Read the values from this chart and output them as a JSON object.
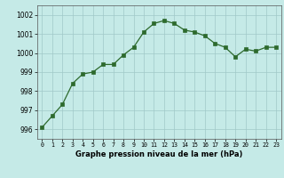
{
  "x": [
    0,
    1,
    2,
    3,
    4,
    5,
    6,
    7,
    8,
    9,
    10,
    11,
    12,
    13,
    14,
    15,
    16,
    17,
    18,
    19,
    20,
    21,
    22,
    23
  ],
  "y": [
    996.1,
    996.7,
    997.3,
    998.4,
    998.9,
    999.0,
    999.4,
    999.4,
    999.9,
    1000.3,
    1001.1,
    1001.55,
    1001.7,
    1001.55,
    1001.2,
    1001.1,
    1000.9,
    1000.5,
    1000.3,
    999.8,
    1000.2,
    1000.1,
    1000.3,
    1000.3
  ],
  "line_color": "#2d6a2d",
  "marker_color": "#2d6a2d",
  "bg_color": "#c5eae7",
  "grid_color": "#a0c8c8",
  "xlabel": "Graphe pression niveau de la mer (hPa)",
  "ylim": [
    995.5,
    1002.5
  ],
  "xlim": [
    -0.5,
    23.5
  ],
  "yticks": [
    996,
    997,
    998,
    999,
    1000,
    1001,
    1002
  ],
  "xticks": [
    0,
    1,
    2,
    3,
    4,
    5,
    6,
    7,
    8,
    9,
    10,
    11,
    12,
    13,
    14,
    15,
    16,
    17,
    18,
    19,
    20,
    21,
    22,
    23
  ]
}
